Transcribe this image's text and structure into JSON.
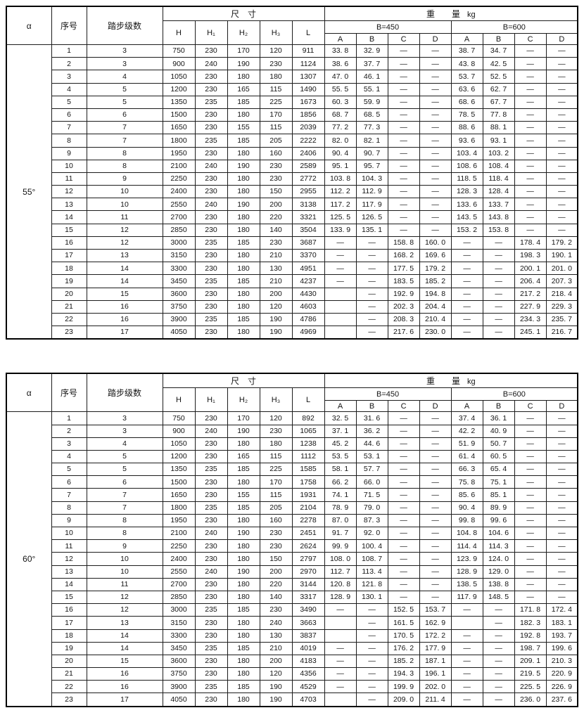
{
  "tables": [
    {
      "alpha": "55°",
      "header": {
        "alpha": "α",
        "serial": "序号",
        "steps": "踏步级数",
        "dims_title": "尺　寸",
        "weight_title": "重　　量",
        "weight_unit": "kg",
        "dim_cols": [
          "H",
          "H₁",
          "H₂",
          "H₃",
          "L"
        ],
        "b450": "B=450",
        "b600": "B=600",
        "abcd": [
          "A",
          "B",
          "C",
          "D"
        ]
      },
      "rows": [
        [
          "1",
          "3",
          "750",
          "230",
          "170",
          "120",
          "911",
          "33. 8",
          "32. 9",
          "—",
          "—",
          "38. 7",
          "34. 7",
          "—",
          "—"
        ],
        [
          "2",
          "3",
          "900",
          "240",
          "190",
          "230",
          "1124",
          "38. 6",
          "37. 7",
          "—",
          "—",
          "43. 8",
          "42. 5",
          "—",
          "—"
        ],
        [
          "3",
          "4",
          "1050",
          "230",
          "180",
          "180",
          "1307",
          "47. 0",
          "46. 1",
          "—",
          "—",
          "53. 7",
          "52. 5",
          "—",
          "—"
        ],
        [
          "4",
          "5",
          "1200",
          "230",
          "165",
          "115",
          "1490",
          "55. 5",
          "55. 1",
          "—",
          "—",
          "63. 6",
          "62. 7",
          "—",
          "—"
        ],
        [
          "5",
          "5",
          "1350",
          "235",
          "185",
          "225",
          "1673",
          "60. 3",
          "59. 9",
          "—",
          "—",
          "68. 6",
          "67. 7",
          "—",
          "—"
        ],
        [
          "6",
          "6",
          "1500",
          "230",
          "180",
          "170",
          "1856",
          "68. 7",
          "68. 5",
          "—",
          "—",
          "78. 5",
          "77. 8",
          "—",
          "—"
        ],
        [
          "7",
          "7",
          "1650",
          "230",
          "155",
          "115",
          "2039",
          "77. 2",
          "77. 3",
          "—",
          "—",
          "88. 6",
          "88. 1",
          "—",
          "—"
        ],
        [
          "8",
          "7",
          "1800",
          "235",
          "185",
          "205",
          "2222",
          "82. 0",
          "82. 1",
          "—",
          "—",
          "93. 6",
          "93. 1",
          "—",
          "—"
        ],
        [
          "9",
          "8",
          "1950",
          "230",
          "180",
          "160",
          "2406",
          "90. 4",
          "90. 7",
          "—",
          "—",
          "103. 4",
          "103. 2",
          "—",
          "—"
        ],
        [
          "10",
          "8",
          "2100",
          "240",
          "190",
          "230",
          "2589",
          "95. 1",
          "95. 7",
          "—",
          "—",
          "108. 6",
          "108. 4",
          "—",
          "—"
        ],
        [
          "11",
          "9",
          "2250",
          "230",
          "180",
          "230",
          "2772",
          "103. 8",
          "104. 3",
          "—",
          "—",
          "118. 5",
          "118. 4",
          "—",
          "—"
        ],
        [
          "12",
          "10",
          "2400",
          "230",
          "180",
          "150",
          "2955",
          "112. 2",
          "112. 9",
          "—",
          "—",
          "128. 3",
          "128. 4",
          "—",
          "—"
        ],
        [
          "13",
          "10",
          "2550",
          "240",
          "190",
          "200",
          "3138",
          "117. 2",
          "117. 9",
          "—",
          "—",
          "133. 6",
          "133. 7",
          "—",
          "—"
        ],
        [
          "14",
          "11",
          "2700",
          "230",
          "180",
          "220",
          "3321",
          "125. 5",
          "126. 5",
          "—",
          "—",
          "143. 5",
          "143. 8",
          "—",
          "—"
        ],
        [
          "15",
          "12",
          "2850",
          "230",
          "180",
          "140",
          "3504",
          "133. 9",
          "135. 1",
          "—",
          "—",
          "153. 2",
          "153. 8",
          "—",
          "—"
        ],
        [
          "16",
          "12",
          "3000",
          "235",
          "185",
          "230",
          "3687",
          "—",
          "—",
          "158. 8",
          "160. 0",
          "—",
          "—",
          "178. 4",
          "179. 2"
        ],
        [
          "17",
          "13",
          "3150",
          "230",
          "180",
          "210",
          "3370",
          "—",
          "—",
          "168. 2",
          "169. 6",
          "—",
          "—",
          "198. 3",
          "190. 1"
        ],
        [
          "18",
          "14",
          "3300",
          "230",
          "180",
          "130",
          "4951",
          "—",
          "—",
          "177. 5",
          "179. 2",
          "—",
          "—",
          "200. 1",
          "201. 0"
        ],
        [
          "19",
          "14",
          "3450",
          "235",
          "185",
          "210",
          "4237",
          "—",
          "—",
          "183. 5",
          "185. 2",
          "—",
          "—",
          "206. 4",
          "207. 3"
        ],
        [
          "20",
          "15",
          "3600",
          "230",
          "180",
          "200",
          "4430",
          "",
          "—",
          "192. 9",
          "194. 8",
          "—",
          "—",
          "217. 2",
          "218. 4"
        ],
        [
          "21",
          "16",
          "3750",
          "230",
          "180",
          "120",
          "4603",
          "",
          "—",
          "202. 3",
          "204. 4",
          "—",
          "—",
          "227. 9",
          "229. 3"
        ],
        [
          "22",
          "16",
          "3900",
          "235",
          "185",
          "190",
          "4786",
          "",
          "—",
          "208. 3",
          "210. 4",
          "—",
          "—",
          "234. 3",
          "235. 7"
        ],
        [
          "23",
          "17",
          "4050",
          "230",
          "180",
          "190",
          "4969",
          "",
          "—",
          "217. 6",
          "230. 0",
          "—",
          "—",
          "245. 1",
          "216. 7"
        ]
      ]
    },
    {
      "alpha": "60°",
      "header": {
        "alpha": "α",
        "serial": "序号",
        "steps": "踏步级数",
        "dims_title": "尺　寸",
        "weight_title": "重　　量",
        "weight_unit": "kg",
        "dim_cols": [
          "H",
          "H₁",
          "H₂",
          "H₃",
          "L"
        ],
        "b450": "B=450",
        "b600": "B=600",
        "abcd": [
          "A",
          "B",
          "C",
          "D"
        ]
      },
      "rows": [
        [
          "1",
          "3",
          "750",
          "230",
          "170",
          "120",
          "892",
          "32. 5",
          "31. 6",
          "—",
          "—",
          "37. 4",
          "36. 1",
          "—",
          "—"
        ],
        [
          "2",
          "3",
          "900",
          "240",
          "190",
          "230",
          "1065",
          "37. 1",
          "36. 2",
          "—",
          "—",
          "42. 2",
          "40. 9",
          "—",
          "—"
        ],
        [
          "3",
          "4",
          "1050",
          "230",
          "180",
          "180",
          "1238",
          "45. 2",
          "44. 6",
          "—",
          "—",
          "51. 9",
          "50. 7",
          "—",
          "—"
        ],
        [
          "4",
          "5",
          "1200",
          "230",
          "165",
          "115",
          "1112",
          "53. 5",
          "53. 1",
          "—",
          "—",
          "61. 4",
          "60. 5",
          "—",
          "—"
        ],
        [
          "5",
          "5",
          "1350",
          "235",
          "185",
          "225",
          "1585",
          "58. 1",
          "57. 7",
          "—",
          "—",
          "66. 3",
          "65. 4",
          "—",
          "—"
        ],
        [
          "6",
          "6",
          "1500",
          "230",
          "180",
          "170",
          "1758",
          "66. 2",
          "66. 0",
          "—",
          "—",
          "75. 8",
          "75. 1",
          "—",
          "—"
        ],
        [
          "7",
          "7",
          "1650",
          "230",
          "155",
          "115",
          "1931",
          "74. 1",
          "71. 5",
          "—",
          "—",
          "85. 6",
          "85. 1",
          "—",
          "—"
        ],
        [
          "8",
          "7",
          "1800",
          "235",
          "185",
          "205",
          "2104",
          "78. 9",
          "79. 0",
          "—",
          "—",
          "90. 4",
          "89. 9",
          "—",
          "—"
        ],
        [
          "9",
          "8",
          "1950",
          "230",
          "180",
          "160",
          "2278",
          "87. 0",
          "87. 3",
          "—",
          "—",
          "99. 8",
          "99. 6",
          "—",
          "—"
        ],
        [
          "10",
          "8",
          "2100",
          "240",
          "190",
          "230",
          "2451",
          "91. 7",
          "92. 0",
          "—",
          "—",
          "104. 8",
          "104. 6",
          "—",
          "—"
        ],
        [
          "11",
          "9",
          "2250",
          "230",
          "180",
          "230",
          "2624",
          "99. 9",
          "100. 4",
          "—",
          "—",
          "114. 4",
          "114. 3",
          "—",
          "—"
        ],
        [
          "12",
          "10",
          "2400",
          "230",
          "180",
          "150",
          "2797",
          "108. 0",
          "108. 7",
          "—",
          "—",
          "123. 9",
          "124. 0",
          "—",
          "—"
        ],
        [
          "13",
          "10",
          "2550",
          "240",
          "190",
          "200",
          "2970",
          "112. 7",
          "113. 4",
          "—",
          "—",
          "128. 9",
          "129. 0",
          "—",
          "—"
        ],
        [
          "14",
          "11",
          "2700",
          "230",
          "180",
          "220",
          "3144",
          "120. 8",
          "121. 8",
          "—",
          "—",
          "138. 5",
          "138. 8",
          "—",
          "—"
        ],
        [
          "15",
          "12",
          "2850",
          "230",
          "180",
          "140",
          "3317",
          "128. 9",
          "130. 1",
          "—",
          "—",
          "117. 9",
          "148. 5",
          "—",
          "—"
        ],
        [
          "16",
          "12",
          "3000",
          "235",
          "185",
          "230",
          "3490",
          "—",
          "—",
          "152. 5",
          "153. 7",
          "—",
          "—",
          "171. 8",
          "172. 4"
        ],
        [
          "17",
          "13",
          "3150",
          "230",
          "180",
          "240",
          "3663",
          "",
          "—",
          "161. 5",
          "162. 9",
          "",
          "—",
          "182. 3",
          "183. 1"
        ],
        [
          "18",
          "14",
          "3300",
          "230",
          "180",
          "130",
          "3837",
          "",
          "—",
          "170. 5",
          "172. 2",
          "—",
          "—",
          "192. 8",
          "193. 7"
        ],
        [
          "19",
          "14",
          "3450",
          "235",
          "185",
          "210",
          "4019",
          "—",
          "—",
          "176. 2",
          "177. 9",
          "—",
          "—",
          "198. 7",
          "199. 6"
        ],
        [
          "20",
          "15",
          "3600",
          "230",
          "180",
          "200",
          "4183",
          "—",
          "—",
          "185. 2",
          "187. 1",
          "—",
          "—",
          "209. 1",
          "210. 3"
        ],
        [
          "21",
          "16",
          "3750",
          "230",
          "180",
          "120",
          "4356",
          "—",
          "—",
          "194. 3",
          "196. 1",
          "—",
          "—",
          "219. 5",
          "220. 9"
        ],
        [
          "22",
          "16",
          "3900",
          "235",
          "185",
          "190",
          "4529",
          "—",
          "—",
          "199. 9",
          "202. 0",
          "—",
          "—",
          "225. 5",
          "226. 9"
        ],
        [
          "23",
          "17",
          "4050",
          "230",
          "180",
          "190",
          "4703",
          "",
          "—",
          "209. 0",
          "211. 4",
          "—",
          "—",
          "236. 0",
          "237. 6"
        ]
      ]
    }
  ]
}
